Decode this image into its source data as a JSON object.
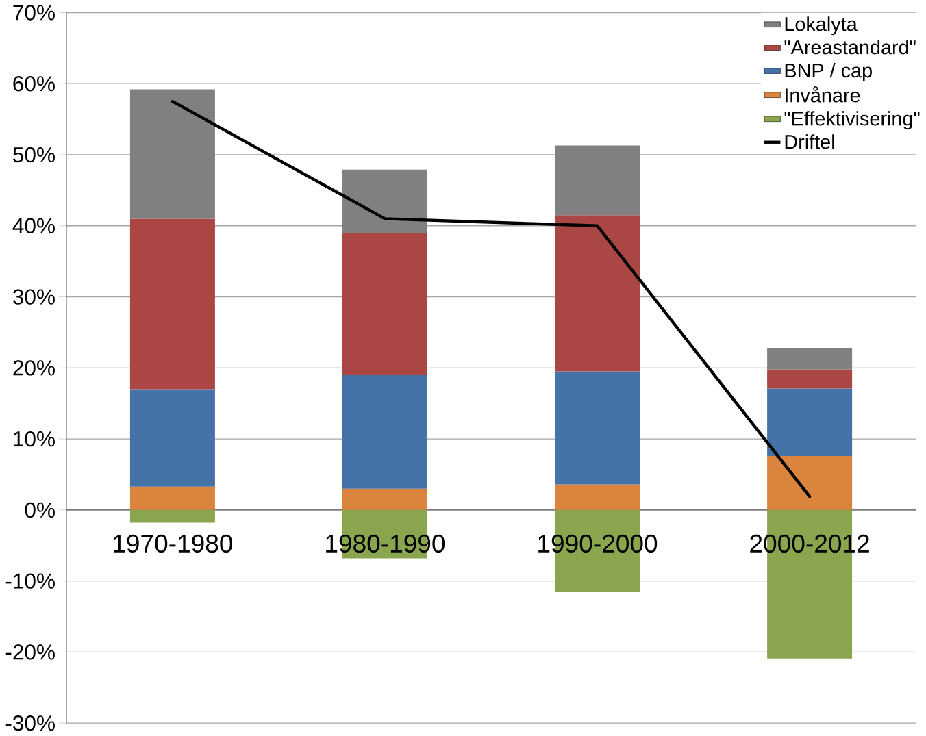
{
  "chart_data": {
    "type": "bar",
    "stacked": true,
    "categories": [
      "1970-1980",
      "1980-1990",
      "1990-2000",
      "2000-2012"
    ],
    "series": [
      {
        "name": "\"Effektivisering\"",
        "color": "#89a54e",
        "values": [
          -1.8,
          -6.8,
          -11.5,
          -20.9
        ]
      },
      {
        "name": "Invånare",
        "color": "#db843d",
        "values": [
          3.3,
          3.0,
          3.6,
          7.6
        ]
      },
      {
        "name": "BNP / cap",
        "color": "#4572a7",
        "values": [
          13.7,
          16.0,
          15.9,
          9.5
        ]
      },
      {
        "name": "\"Areastandard\"",
        "color": "#aa4644",
        "values": [
          24.0,
          20.0,
          22.0,
          2.7
        ]
      },
      {
        "name": "Lokalyta",
        "color": "#808080",
        "values": [
          18.2,
          8.9,
          9.8,
          3.0
        ]
      },
      {
        "name": "Driftel",
        "color": "#000000",
        "type": "line",
        "values": [
          57.5,
          41.0,
          40.0,
          1.9
        ]
      }
    ],
    "ylim": [
      -30,
      70
    ],
    "yticks": [
      {
        "value": -30,
        "label": "-30%"
      },
      {
        "value": -20,
        "label": "-20%"
      },
      {
        "value": -10,
        "label": "-10%"
      },
      {
        "value": 0,
        "label": "0%"
      },
      {
        "value": 10,
        "label": "10%"
      },
      {
        "value": 20,
        "label": "20%"
      },
      {
        "value": 30,
        "label": "30%"
      },
      {
        "value": 40,
        "label": "40%"
      },
      {
        "value": 50,
        "label": "50%"
      },
      {
        "value": 60,
        "label": "60%"
      },
      {
        "value": 70,
        "label": "70%"
      }
    ],
    "grid": "y",
    "legend": "top right"
  }
}
